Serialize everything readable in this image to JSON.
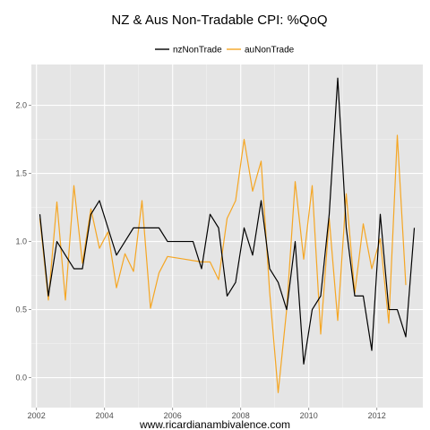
{
  "colors": {
    "panel": "#e5e5e5",
    "nz": "#000000",
    "au": "#f5a623"
  },
  "footer": "www.ricardianambivalence.com",
  "chart_data": {
    "type": "line",
    "title": "NZ & Aus Non-Tradable CPI: %QoQ",
    "xlabel": "",
    "ylabel": "",
    "legend_position": "top",
    "grid": true,
    "xlim": [
      2001.85,
      2013.35
    ],
    "ylim": [
      -0.22,
      2.3
    ],
    "x_ticks": [
      {
        "value": 2002,
        "label": "2002"
      },
      {
        "value": 2004,
        "label": "2004"
      },
      {
        "value": 2006,
        "label": "2006"
      },
      {
        "value": 2008,
        "label": "2008"
      },
      {
        "value": 2010,
        "label": "2010"
      },
      {
        "value": 2012,
        "label": "2012"
      }
    ],
    "y_ticks": [
      {
        "value": 0.0,
        "label": "0.0"
      },
      {
        "value": 0.5,
        "label": "0.5"
      },
      {
        "value": 1.0,
        "label": "1.0"
      },
      {
        "value": 1.5,
        "label": "1.5"
      },
      {
        "value": 2.0,
        "label": "2.0"
      }
    ],
    "series": [
      {
        "name": "nzNonTrade",
        "color": "#000000",
        "points": [
          [
            2002.1,
            1.2
          ],
          [
            2002.35,
            0.6
          ],
          [
            2002.6,
            1.0
          ],
          [
            2002.85,
            0.9
          ],
          [
            2003.1,
            0.8
          ],
          [
            2003.35,
            0.8
          ],
          [
            2003.6,
            1.2
          ],
          [
            2003.85,
            1.3
          ],
          [
            2004.1,
            1.1
          ],
          [
            2004.35,
            0.9
          ],
          [
            2004.6,
            1.0
          ],
          [
            2004.85,
            1.1
          ],
          [
            2005.1,
            1.1
          ],
          [
            2005.35,
            1.1
          ],
          [
            2005.6,
            1.1
          ],
          [
            2005.85,
            1.0
          ],
          [
            2006.1,
            1.0
          ],
          [
            2006.35,
            1.0
          ],
          [
            2006.6,
            1.0
          ],
          [
            2006.85,
            0.8
          ],
          [
            2007.1,
            1.2
          ],
          [
            2007.35,
            1.1
          ],
          [
            2007.6,
            0.6
          ],
          [
            2007.85,
            0.7
          ],
          [
            2008.1,
            1.1
          ],
          [
            2008.35,
            0.9
          ],
          [
            2008.6,
            1.3
          ],
          [
            2008.85,
            0.8
          ],
          [
            2009.1,
            0.7
          ],
          [
            2009.35,
            0.5
          ],
          [
            2009.6,
            1.0
          ],
          [
            2009.85,
            0.1
          ],
          [
            2010.1,
            0.5
          ],
          [
            2010.35,
            0.6
          ],
          [
            2010.6,
            1.2
          ],
          [
            2010.85,
            2.2
          ],
          [
            2011.1,
            1.1
          ],
          [
            2011.35,
            0.6
          ],
          [
            2011.6,
            0.6
          ],
          [
            2011.85,
            0.2
          ],
          [
            2012.1,
            1.2
          ],
          [
            2012.35,
            0.5
          ],
          [
            2012.6,
            0.5
          ],
          [
            2012.85,
            0.3
          ],
          [
            2013.1,
            1.1
          ]
        ]
      },
      {
        "name": "auNonTrade",
        "color": "#f5a623",
        "points": [
          [
            2002.1,
            1.17
          ],
          [
            2002.35,
            0.57
          ],
          [
            2002.6,
            1.29
          ],
          [
            2002.85,
            0.57
          ],
          [
            2003.1,
            1.41
          ],
          [
            2003.35,
            0.84
          ],
          [
            2003.6,
            1.24
          ],
          [
            2003.85,
            0.95
          ],
          [
            2004.1,
            1.07
          ],
          [
            2004.35,
            0.66
          ],
          [
            2004.6,
            0.91
          ],
          [
            2004.85,
            0.78
          ],
          [
            2005.1,
            1.3
          ],
          [
            2005.35,
            0.51
          ],
          [
            2005.6,
            0.77
          ],
          [
            2005.85,
            0.89
          ],
          [
            2006.1,
            0.88
          ],
          [
            2006.35,
            0.87
          ],
          [
            2006.6,
            0.86
          ],
          [
            2006.85,
            0.85
          ],
          [
            2007.1,
            0.85
          ],
          [
            2007.35,
            0.72
          ],
          [
            2007.6,
            1.17
          ],
          [
            2007.85,
            1.3
          ],
          [
            2008.1,
            1.75
          ],
          [
            2008.35,
            1.37
          ],
          [
            2008.6,
            1.59
          ],
          [
            2008.85,
            0.63
          ],
          [
            2009.1,
            -0.11
          ],
          [
            2009.35,
            0.5
          ],
          [
            2009.6,
            1.44
          ],
          [
            2009.85,
            0.87
          ],
          [
            2010.1,
            1.41
          ],
          [
            2010.35,
            0.32
          ],
          [
            2010.6,
            1.17
          ],
          [
            2010.85,
            0.42
          ],
          [
            2011.1,
            1.35
          ],
          [
            2011.35,
            0.62
          ],
          [
            2011.6,
            1.13
          ],
          [
            2011.85,
            0.8
          ],
          [
            2012.1,
            1.02
          ],
          [
            2012.35,
            0.4
          ],
          [
            2012.6,
            1.78
          ],
          [
            2012.85,
            0.68
          ]
        ]
      }
    ]
  }
}
